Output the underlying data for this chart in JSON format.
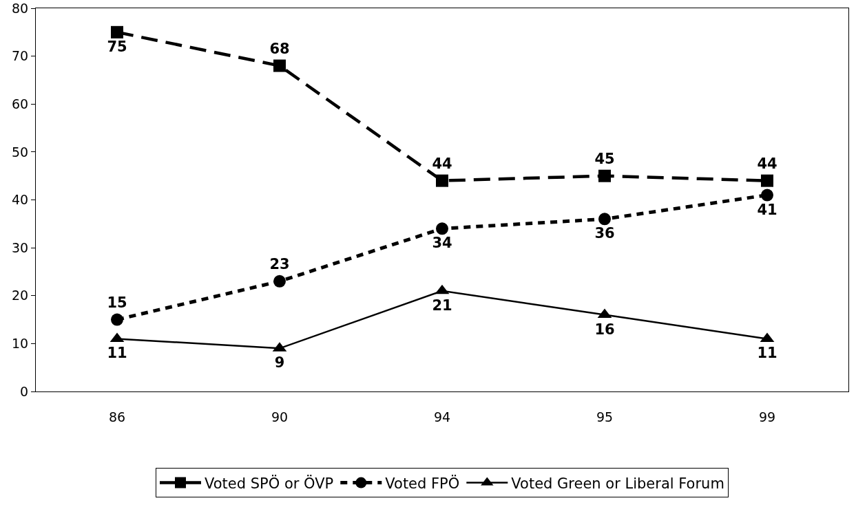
{
  "chart_data": {
    "type": "line",
    "categories": [
      "86",
      "90",
      "94",
      "95",
      "99"
    ],
    "series": [
      {
        "name": "Voted SPÖ or ÖVP",
        "color": "#000000",
        "values": [
          75,
          68,
          44,
          45,
          44
        ],
        "marker": "square",
        "line_style": "dashed"
      },
      {
        "name": "Voted FPÖ",
        "color": "#000000",
        "values": [
          15,
          23,
          34,
          36,
          41
        ],
        "marker": "circle",
        "line_style": "dotted"
      },
      {
        "name": "Voted Green or Liberal Forum",
        "color": "#000000",
        "values": [
          11,
          9,
          21,
          16,
          11
        ],
        "marker": "triangle",
        "line_style": "solid"
      }
    ],
    "ylim": [
      0,
      80
    ],
    "yticks": [
      0,
      10,
      20,
      30,
      40,
      50,
      60,
      70,
      80
    ],
    "grid": false,
    "legend": "bottom",
    "data_labels": true
  }
}
